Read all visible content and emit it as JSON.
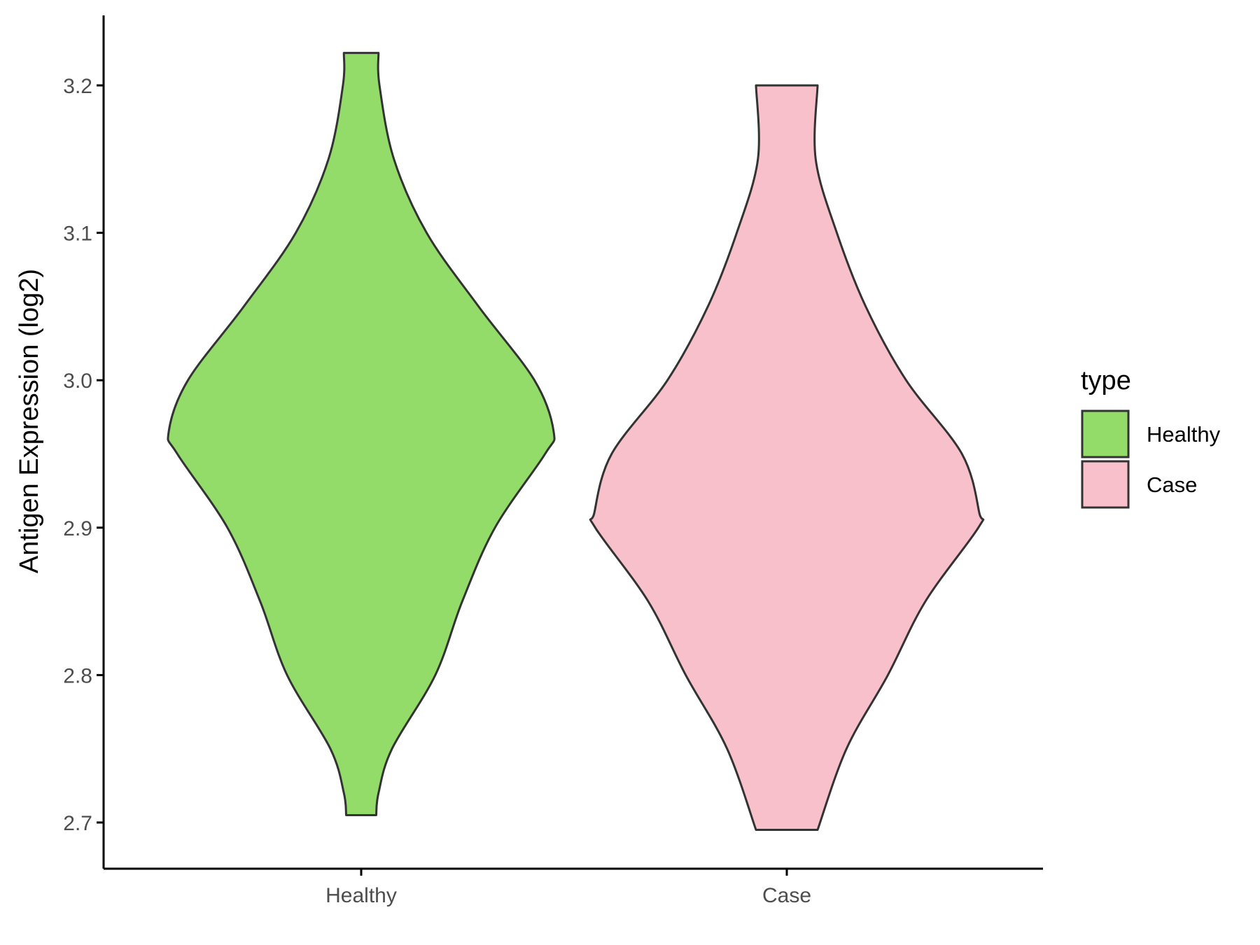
{
  "chart_data": {
    "type": "violin",
    "title": "",
    "xlabel": "",
    "ylabel": "Antigen Expression (log2)",
    "ylim": [
      2.67,
      3.25
    ],
    "yticks": [
      "2.7",
      "2.8",
      "2.9",
      "3.0",
      "3.1",
      "3.2"
    ],
    "categories": [
      "Healthy",
      "Case"
    ],
    "legend": {
      "title": "type",
      "position": "right"
    },
    "series": [
      {
        "name": "Healthy",
        "color": "#93DC6A",
        "min": 2.705,
        "max": 3.222,
        "profile": [
          [
            2.705,
            0.078
          ],
          [
            2.72,
            0.09
          ],
          [
            2.75,
            0.16
          ],
          [
            2.8,
            0.385
          ],
          [
            2.85,
            0.525
          ],
          [
            2.9,
            0.695
          ],
          [
            2.95,
            0.955
          ],
          [
            2.965,
            1.0
          ],
          [
            3.0,
            0.9
          ],
          [
            3.05,
            0.61
          ],
          [
            3.1,
            0.34
          ],
          [
            3.15,
            0.17
          ],
          [
            3.2,
            0.095
          ],
          [
            3.222,
            0.09
          ]
        ]
      },
      {
        "name": "Case",
        "color": "#F8C0CB",
        "min": 2.695,
        "max": 3.2,
        "profile": [
          [
            2.695,
            0.16
          ],
          [
            2.75,
            0.31
          ],
          [
            2.8,
            0.525
          ],
          [
            2.85,
            0.72
          ],
          [
            2.9,
            0.995
          ],
          [
            2.91,
            1.0
          ],
          [
            2.95,
            0.91
          ],
          [
            3.0,
            0.62
          ],
          [
            3.05,
            0.41
          ],
          [
            3.1,
            0.26
          ],
          [
            3.15,
            0.15
          ],
          [
            3.2,
            0.16
          ]
        ]
      }
    ]
  }
}
